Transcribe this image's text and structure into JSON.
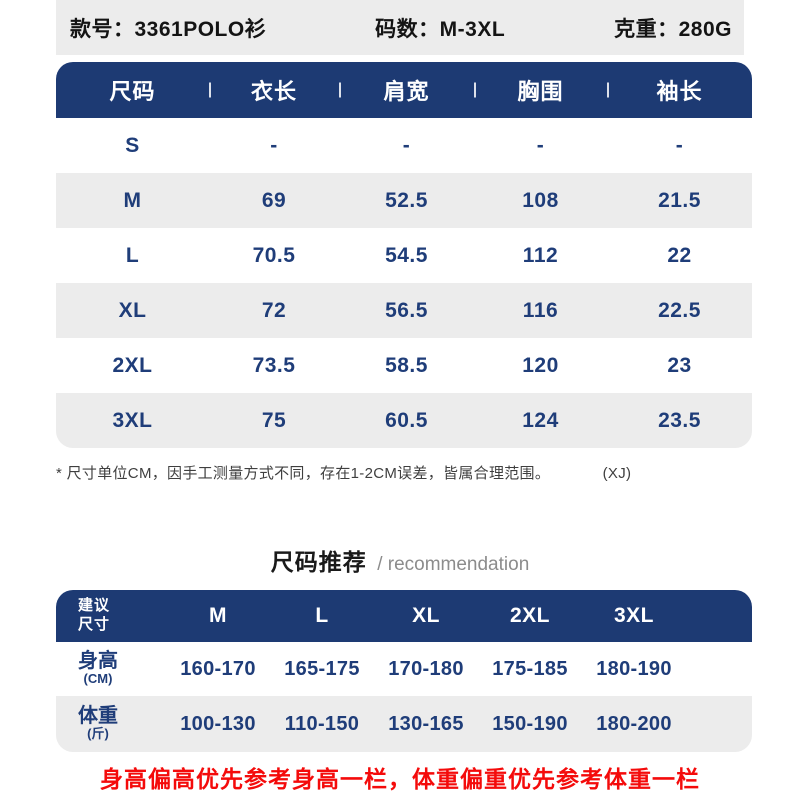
{
  "colors": {
    "navy": "#1d3a73",
    "text_navy": "#1f3d79",
    "row_gray": "#ececec",
    "topbar_gray": "#ececec",
    "warning_red": "#f40b0b",
    "footnote_gray": "#3f3f3f",
    "heading_gray": "#8c8c8c"
  },
  "top_bar": {
    "style_label": "款号：3361POLO衫",
    "size_range_label": "码数：M-3XL",
    "weight_label": "克重：280G"
  },
  "size_table": {
    "headers": [
      "尺码",
      "衣长",
      "肩宽",
      "胸围",
      "袖长"
    ],
    "rows": [
      {
        "size": "S",
        "c1": "-",
        "c2": "-",
        "c3": "-",
        "c4": "-"
      },
      {
        "size": "M",
        "c1": "69",
        "c2": "52.5",
        "c3": "108",
        "c4": "21.5"
      },
      {
        "size": "L",
        "c1": "70.5",
        "c2": "54.5",
        "c3": "112",
        "c4": "22"
      },
      {
        "size": "XL",
        "c1": "72",
        "c2": "56.5",
        "c3": "116",
        "c4": "22.5"
      },
      {
        "size": "2XL",
        "c1": "73.5",
        "c2": "58.5",
        "c3": "120",
        "c4": "23"
      },
      {
        "size": "3XL",
        "c1": "75",
        "c2": "60.5",
        "c3": "124",
        "c4": "23.5"
      }
    ]
  },
  "footnote": {
    "text": "* 尺寸单位CM，因手工测量方式不同，存在1-2CM误差，皆属合理范围。",
    "code": "(XJ)"
  },
  "recommendation": {
    "title_cn": "尺码推荐",
    "title_en": "/ recommendation",
    "corner_line1": "建议",
    "corner_line2": "尺寸",
    "columns": [
      "M",
      "L",
      "XL",
      "2XL",
      "3XL"
    ],
    "rows": [
      {
        "label": "身高",
        "unit": "(CM)",
        "v1": "160-170",
        "v2": "165-175",
        "v3": "170-180",
        "v4": "175-185",
        "v5": "180-190"
      },
      {
        "label": "体重",
        "unit": "(斤)",
        "v1": "100-130",
        "v2": "110-150",
        "v3": "130-165",
        "v4": "150-190",
        "v5": "180-200"
      }
    ]
  },
  "warning": "身高偏高优先参考身高一栏，体重偏重优先参考体重一栏"
}
